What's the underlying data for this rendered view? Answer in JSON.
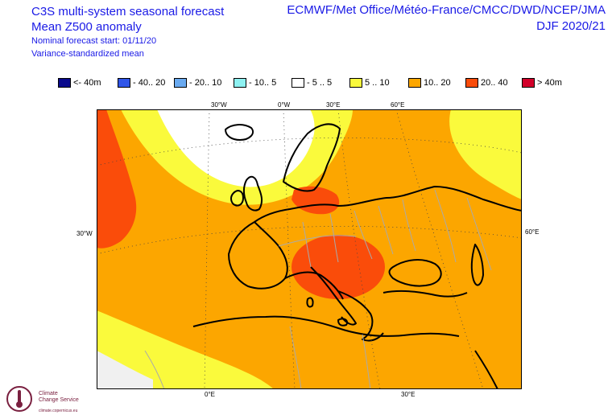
{
  "header": {
    "title_line1": "C3S multi-system seasonal forecast",
    "title_line2": "Mean Z500 anomaly",
    "start_line": "Nominal forecast start: 01/11/20",
    "method_line": "Variance-standardized mean",
    "centres": "ECMWF/Met Office/Météo-France/CMCC/DWD/NCEP/JMA",
    "season": "DJF 2020/21"
  },
  "legend": [
    {
      "label": "<- 40m",
      "color": "#0a0a8c"
    },
    {
      "label": "- 40.. 20",
      "color": "#2f55e8"
    },
    {
      "label": "- 20.. 10",
      "color": "#6aaaf0"
    },
    {
      "label": "- 10.. 5",
      "color": "#8ef2f2"
    },
    {
      "label": "- 5 .. 5",
      "color": "#ffffff"
    },
    {
      "label": "5 .. 10",
      "color": "#fafa3c"
    },
    {
      "label": "10.. 20",
      "color": "#fca600"
    },
    {
      "label": "20.. 40",
      "color": "#fa4c0a"
    },
    {
      "label": "> 40m",
      "color": "#d2002a"
    }
  ],
  "graticule": {
    "top": [
      "30°W",
      "0°W",
      "30°E",
      "60°E"
    ],
    "bottom": [
      "0°E",
      "30°E"
    ],
    "left": [
      "30°W"
    ],
    "right": [
      "60°E"
    ]
  },
  "map_colors": {
    "land_outline": "#000000",
    "borders": "#aaaaaa",
    "ocean_no_data": "#f0f0f0"
  },
  "logo": {
    "line1": "Climate",
    "line2": "Change Service",
    "line3": "climate.copernicus.eu"
  }
}
